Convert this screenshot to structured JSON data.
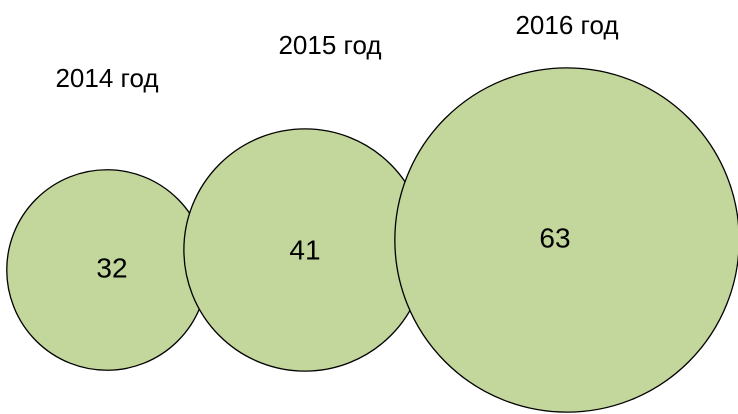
{
  "chart_data": {
    "type": "bubble",
    "categories": [
      "2014 год",
      "2015 год",
      "2016 год"
    ],
    "values": [
      32,
      41,
      63
    ],
    "color": "#c3d69b"
  }
}
